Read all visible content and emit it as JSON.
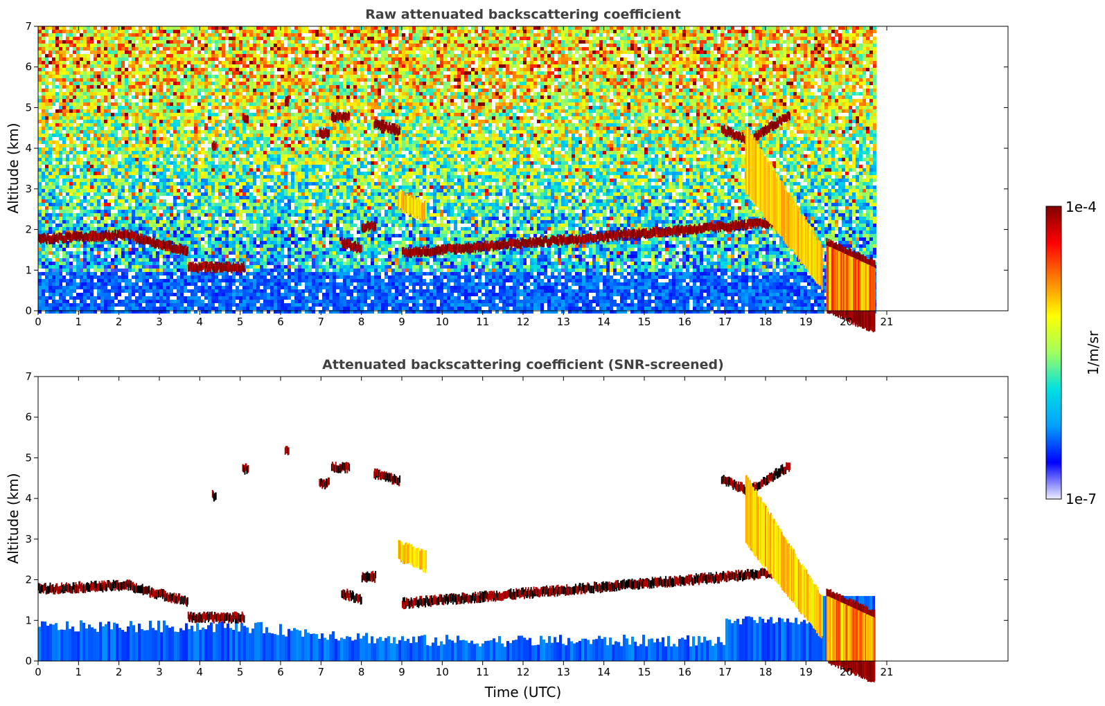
{
  "chart_data": [
    {
      "type": "heatmap",
      "title": "Raw attenuated backscattering coefficient",
      "xlabel": "",
      "ylabel": "Altitude (km)",
      "xlim": [
        0,
        24
      ],
      "ylim": [
        0,
        7
      ],
      "x_ticks": [
        "0",
        "1",
        "2",
        "3",
        "4",
        "5",
        "6",
        "7",
        "8",
        "9",
        "10",
        "11",
        "12",
        "13",
        "14",
        "15",
        "16",
        "17",
        "18",
        "19",
        "20",
        "21"
      ],
      "y_ticks": [
        "0",
        "1",
        "2",
        "3",
        "4",
        "5",
        "6",
        "7"
      ],
      "data_end_time": 20.7,
      "screened": false,
      "layers": [
        {
          "feature": "cloud",
          "t_start": 0.0,
          "t_end": 2.3,
          "alt_start_km": 1.8,
          "alt_end_km": 1.9,
          "intensity": "1e-4"
        },
        {
          "feature": "cloud",
          "t_start": 2.3,
          "t_end": 3.7,
          "alt_start_km": 1.85,
          "alt_end_km": 1.5,
          "intensity": "1e-4"
        },
        {
          "feature": "cloud",
          "t_start": 3.7,
          "t_end": 5.1,
          "alt_start_km": 1.1,
          "alt_end_km": 1.1,
          "intensity": "1e-4"
        },
        {
          "feature": "cloud",
          "t_start": 4.3,
          "t_end": 4.4,
          "alt_start_km": 4.1,
          "alt_end_km": 4.1,
          "intensity": "1e-4"
        },
        {
          "feature": "cloud",
          "t_start": 5.05,
          "t_end": 5.2,
          "alt_start_km": 4.75,
          "alt_end_km": 4.75,
          "intensity": "1e-4"
        },
        {
          "feature": "cloud",
          "t_start": 6.1,
          "t_end": 6.2,
          "alt_start_km": 5.2,
          "alt_end_km": 5.2,
          "intensity": "1e-4"
        },
        {
          "feature": "cloud",
          "t_start": 6.95,
          "t_end": 7.2,
          "alt_start_km": 4.4,
          "alt_end_km": 4.4,
          "intensity": "1e-4"
        },
        {
          "feature": "cloud",
          "t_start": 7.25,
          "t_end": 7.7,
          "alt_start_km": 4.8,
          "alt_end_km": 4.8,
          "intensity": "1e-4"
        },
        {
          "feature": "cloud",
          "t_start": 7.5,
          "t_end": 8.0,
          "alt_start_km": 1.7,
          "alt_end_km": 1.55,
          "intensity": "1e-4"
        },
        {
          "feature": "cloud",
          "t_start": 8.0,
          "t_end": 8.35,
          "alt_start_km": 2.1,
          "alt_end_km": 2.1,
          "intensity": "1e-4"
        },
        {
          "feature": "cloud",
          "t_start": 8.3,
          "t_end": 8.95,
          "alt_start_km": 4.65,
          "alt_end_km": 4.45,
          "intensity": "1e-4"
        },
        {
          "feature": "aerosol",
          "t_start": 8.9,
          "t_end": 9.6,
          "alt_start_km": 2.9,
          "alt_end_km": 2.6,
          "intensity": "1e-5"
        },
        {
          "feature": "cloud",
          "t_start": 9.0,
          "t_end": 18.2,
          "alt_start_km": 1.45,
          "alt_end_km": 2.2,
          "intensity": "1e-4"
        },
        {
          "feature": "cloud",
          "t_start": 16.9,
          "t_end": 17.5,
          "alt_start_km": 4.5,
          "alt_end_km": 4.25,
          "intensity": "1e-4"
        },
        {
          "feature": "cloud",
          "t_start": 17.55,
          "t_end": 18.6,
          "alt_start_km": 4.2,
          "alt_end_km": 4.85,
          "intensity": "1e-4"
        },
        {
          "feature": "precipitation",
          "t_start": 17.5,
          "t_end": 19.4,
          "alt_start_km": 4.5,
          "alt_end_km": 1.5,
          "intensity": "1e-5"
        },
        {
          "feature": "cloud",
          "t_start": 19.5,
          "t_end": 20.7,
          "alt_start_km": 1.7,
          "alt_end_km": 1.15,
          "intensity": "1e-4"
        },
        {
          "feature": "boundary-layer",
          "t_start": 0.0,
          "t_end": 20.7,
          "alt_start_km": 0.0,
          "alt_end_km": 1.0,
          "intensity": "1e-6"
        }
      ]
    },
    {
      "type": "heatmap",
      "title": "Attenuated backscattering coefficient (SNR-screened)",
      "xlabel": "Time (UTC)",
      "ylabel": "Altitude (km)",
      "xlim": [
        0,
        24
      ],
      "ylim": [
        0,
        7
      ],
      "x_ticks": [
        "0",
        "1",
        "2",
        "3",
        "4",
        "5",
        "6",
        "7",
        "8",
        "9",
        "10",
        "11",
        "12",
        "13",
        "14",
        "15",
        "16",
        "17",
        "18",
        "19",
        "20",
        "21"
      ],
      "y_ticks": [
        "0",
        "1",
        "2",
        "3",
        "4",
        "5",
        "6",
        "7"
      ],
      "data_end_time": 20.7,
      "screened": true
    }
  ],
  "colorbar": {
    "label": "1/m/sr",
    "max_label": "1e-4",
    "min_label": "1e-7",
    "scale": "log",
    "colors": [
      "#eeeeff",
      "#0000ff",
      "#00a0ff",
      "#00e0e0",
      "#a0ff60",
      "#ffff00",
      "#ff8000",
      "#ff0000",
      "#800000"
    ]
  }
}
